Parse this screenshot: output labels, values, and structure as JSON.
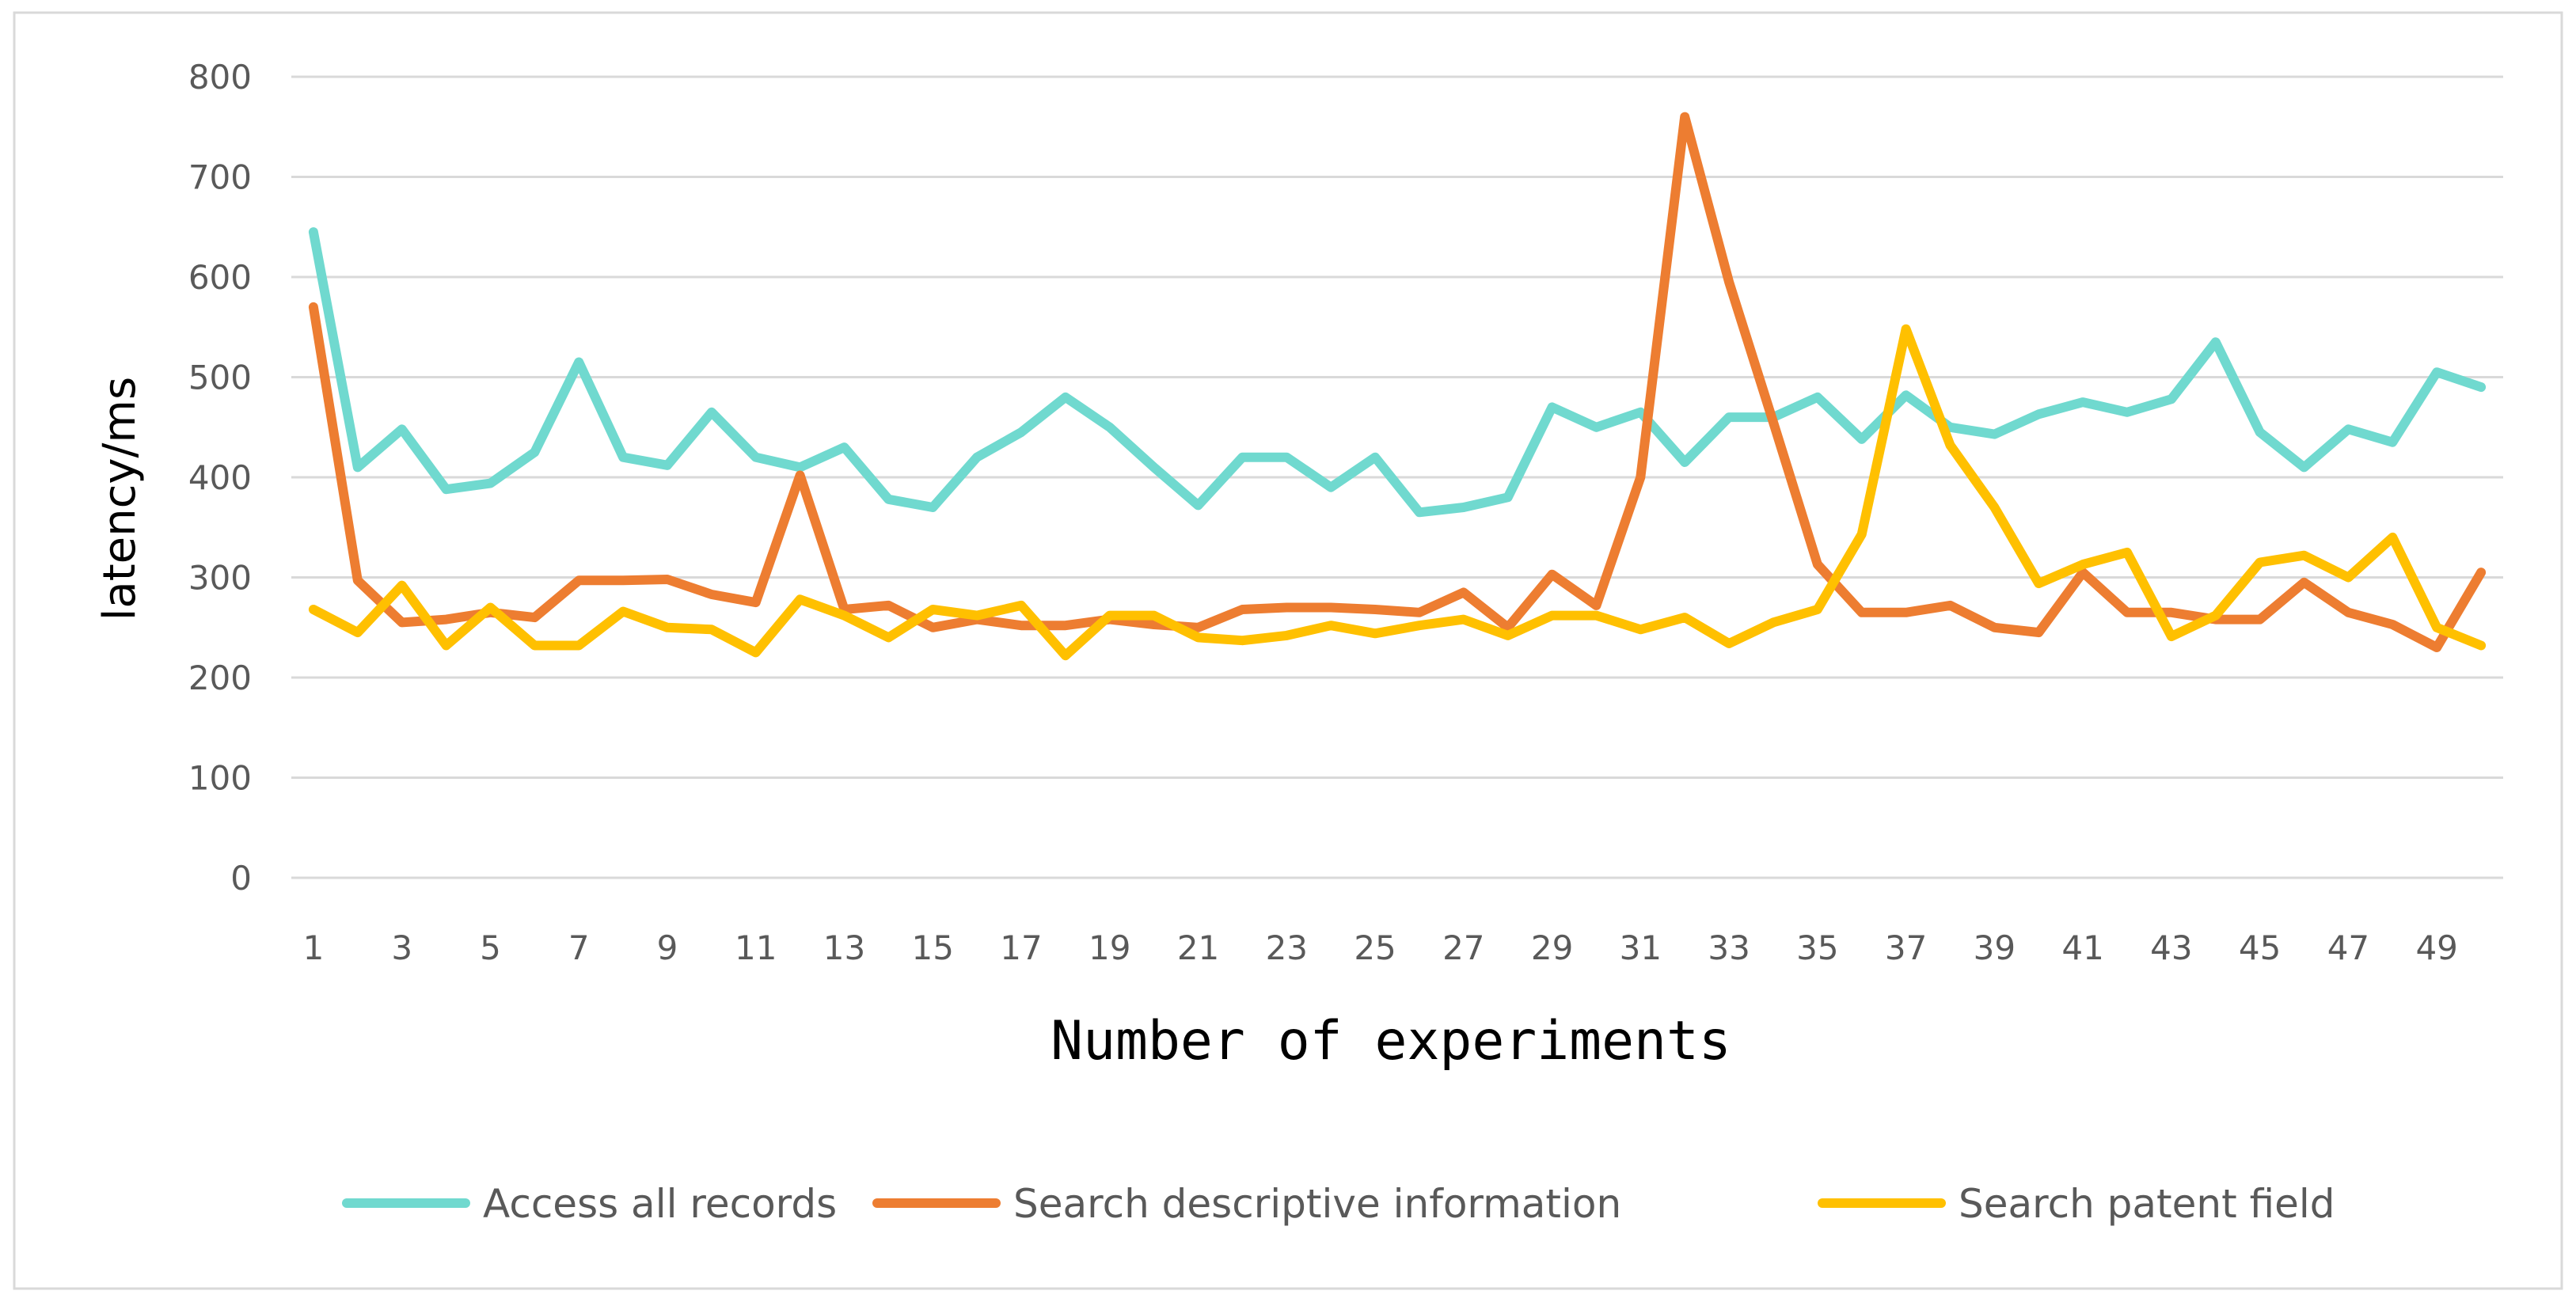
{
  "chart_data": {
    "type": "line",
    "xlabel": "Number of experiments",
    "ylabel": "latency/ms",
    "ylim": [
      0,
      800
    ],
    "yticks": [
      0,
      100,
      200,
      300,
      400,
      500,
      600,
      700,
      800
    ],
    "x": [
      1,
      2,
      3,
      4,
      5,
      6,
      7,
      8,
      9,
      10,
      11,
      12,
      13,
      14,
      15,
      16,
      17,
      18,
      19,
      20,
      21,
      22,
      23,
      24,
      25,
      26,
      27,
      28,
      29,
      30,
      31,
      32,
      33,
      34,
      35,
      36,
      37,
      38,
      39,
      40,
      41,
      42,
      43,
      44,
      45,
      46,
      47,
      48,
      49,
      50
    ],
    "xtick_labels": [
      "1",
      "3",
      "5",
      "7",
      "9",
      "11",
      "13",
      "15",
      "17",
      "19",
      "21",
      "23",
      "25",
      "27",
      "29",
      "31",
      "33",
      "35",
      "37",
      "39",
      "41",
      "43",
      "45",
      "47",
      "49"
    ],
    "grid": true,
    "legend_position": "bottom",
    "series": [
      {
        "name": "Access all records",
        "color": "#70D9CF",
        "values": [
          645,
          410,
          448,
          388,
          394,
          425,
          515,
          420,
          412,
          465,
          420,
          410,
          430,
          378,
          370,
          420,
          445,
          480,
          450,
          410,
          372,
          420,
          420,
          390,
          420,
          365,
          370,
          380,
          470,
          450,
          465,
          415,
          460,
          460,
          480,
          438,
          482,
          450,
          443,
          463,
          475,
          465,
          478,
          535,
          445,
          410,
          448,
          435,
          505,
          490
        ]
      },
      {
        "name": "Search descriptive information",
        "color": "#ED7D31",
        "values": [
          570,
          297,
          255,
          258,
          265,
          260,
          297,
          297,
          298,
          283,
          275,
          402,
          268,
          272,
          250,
          258,
          252,
          252,
          258,
          253,
          250,
          268,
          270,
          270,
          268,
          265,
          285,
          250,
          303,
          272,
          400,
          760,
          595,
          455,
          313,
          265,
          265,
          272,
          250,
          245,
          305,
          265,
          265,
          258,
          258,
          295,
          265,
          253,
          230,
          305
        ]
      },
      {
        "name": "Search patent field",
        "color": "#FFC000",
        "values": [
          268,
          245,
          292,
          232,
          270,
          232,
          232,
          266,
          250,
          248,
          225,
          278,
          262,
          240,
          268,
          262,
          272,
          222,
          262,
          262,
          240,
          237,
          242,
          252,
          244,
          252,
          258,
          242,
          262,
          262,
          248,
          260,
          234,
          255,
          268,
          343,
          548,
          432,
          370,
          294,
          313,
          325,
          241,
          262,
          315,
          322,
          300,
          340,
          250,
          232
        ]
      }
    ]
  }
}
